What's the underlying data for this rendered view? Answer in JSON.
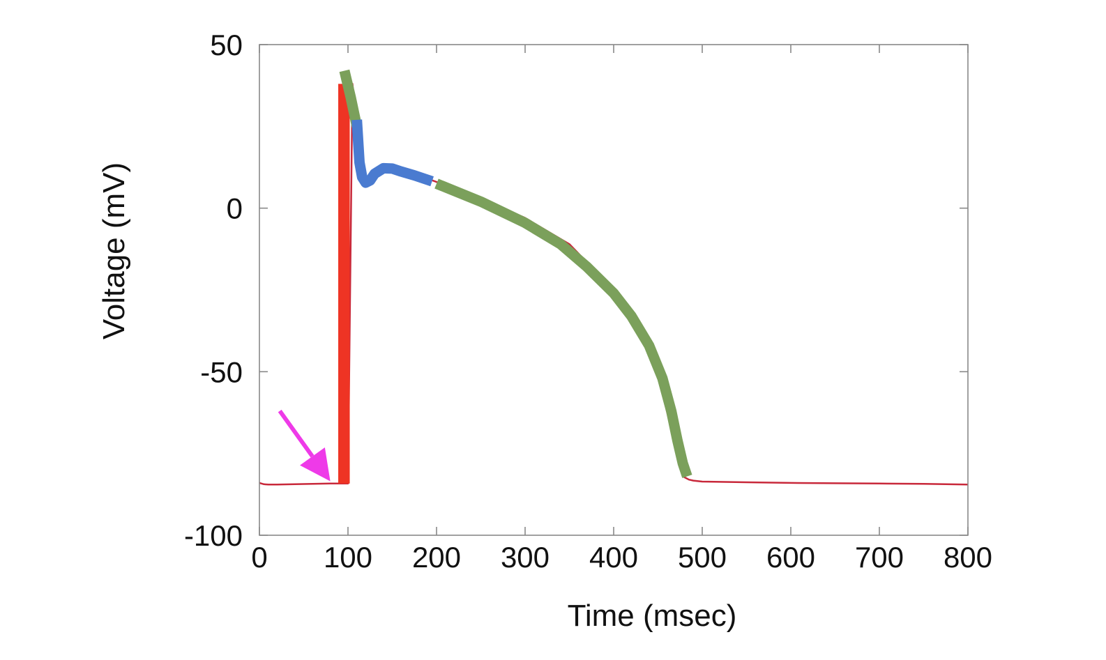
{
  "chart_data": {
    "type": "line",
    "xlabel": "Time (msec)",
    "ylabel": "Voltage (mV)",
    "xlim": [
      0,
      800
    ],
    "ylim": [
      -100,
      50
    ],
    "x_ticks": [
      0,
      100,
      200,
      300,
      400,
      500,
      600,
      700,
      800
    ],
    "x_tick_labels": [
      "0",
      "100",
      "200",
      "300",
      "400",
      "500",
      "600",
      "700",
      "800"
    ],
    "y_ticks": [
      -100,
      -50,
      0,
      50
    ],
    "y_tick_labels": [
      "-100",
      "-50",
      "0",
      "50"
    ],
    "grid": false,
    "series": [
      {
        "role": "membrane potential trace",
        "color": "#c8283a",
        "x": [
          0,
          5,
          10,
          20,
          40,
          60,
          80,
          90,
          100,
          105,
          110,
          115,
          120,
          130,
          140,
          160,
          180,
          200,
          250,
          300,
          350,
          400,
          430,
          450,
          460,
          470,
          478,
          485,
          490,
          500,
          550,
          600,
          650,
          700,
          750,
          800
        ],
        "y": [
          -84,
          -84.4,
          -84.5,
          -84.5,
          -84.4,
          -84.3,
          -84.2,
          -84.2,
          -84.2,
          38,
          26,
          14,
          8,
          9,
          12,
          11,
          10,
          8,
          3,
          -3,
          -11,
          -25,
          -37,
          -50,
          -62,
          -73,
          -82,
          -83,
          -83.3,
          -83.6,
          -83.8,
          -84,
          -84.1,
          -84.2,
          -84.3,
          -84.5
        ]
      },
      {
        "role": "phase 0 (upstroke)",
        "color": "#ee3424",
        "x": [
          89,
          102
        ],
        "y": [
          -84.2,
          38
        ]
      },
      {
        "role": "phase 1 (early repolarization)",
        "color": "#7ba05b",
        "x": [
          96,
          103,
          110
        ],
        "y": [
          42,
          34,
          25
        ]
      },
      {
        "role": "phase 2 (plateau)",
        "color": "#4a7bd0",
        "x": [
          110,
          113,
          116,
          120,
          125,
          130,
          140,
          150,
          160,
          175,
          195
        ],
        "y": [
          27,
          14,
          9.5,
          7.8,
          8.5,
          10.5,
          12.2,
          12.1,
          11.2,
          10,
          8.2
        ]
      },
      {
        "role": "phase 3 (repolarization)",
        "color": "#7ba05b",
        "x": [
          200,
          250,
          300,
          340,
          370,
          400,
          420,
          440,
          455,
          465,
          472,
          478,
          483
        ],
        "y": [
          7.5,
          2,
          -4.5,
          -11,
          -18,
          -26,
          -33,
          -42,
          -52,
          -62,
          -71,
          -78,
          -82
        ]
      }
    ],
    "annotations": [
      {
        "type": "arrow",
        "meaning": "stimulus onset",
        "color": "#ee3ae8",
        "from": {
          "x": 23,
          "y": -62
        },
        "to": {
          "x": 80,
          "y": -83.5
        }
      }
    ]
  }
}
